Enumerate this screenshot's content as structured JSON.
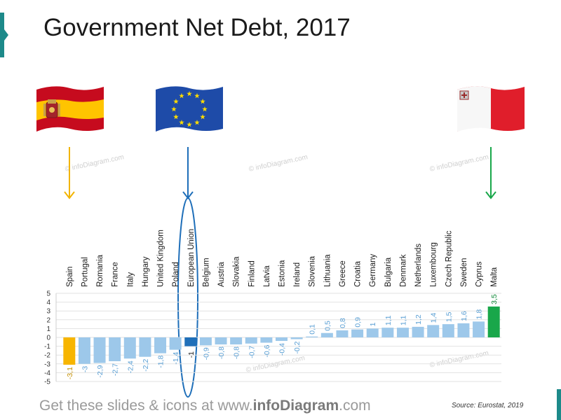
{
  "title": "Government Net Debt, 2017",
  "footer": {
    "pre": "Get these slides & icons at www.",
    "brand": "infoDiagram",
    "post": ".com"
  },
  "source": "Source: Eurostat, 2019",
  "watermark": "© infoDiagram.com",
  "flags": {
    "spain": "spain-flag-icon",
    "eu": "eu-flag-icon",
    "malta": "malta-flag-icon"
  },
  "colors": {
    "bar": "#9dc8ea",
    "label": "#5a9fd4",
    "spain": "#f7b500",
    "spain_label": "#c48f00",
    "eu": "#1f6fb9",
    "malta": "#19a74a",
    "malta_label": "#128a3a"
  },
  "chart_data": {
    "type": "bar",
    "categories": [
      "Spain",
      "Portugal",
      "Romania",
      "France",
      "Italy",
      "Hungary",
      "United Kingdom",
      "Poland",
      "European Union",
      "Belgium",
      "Austria",
      "Slovakia",
      "Finland",
      "Latvia",
      "Estonia",
      "Ireland",
      "Slovenia",
      "Lithuania",
      "Greece",
      "Croatia",
      "Germany",
      "Bulgaria",
      "Denmark",
      "Netherlands",
      "Luxembourg",
      "Czech Republic",
      "Sweden",
      "Cyprus",
      "Malta"
    ],
    "values": [
      -3.1,
      -3,
      -2.9,
      -2.7,
      -2.4,
      -2.2,
      -1.8,
      -1.4,
      -1,
      -0.9,
      -0.8,
      -0.8,
      -0.7,
      -0.6,
      -0.4,
      -0.2,
      0.1,
      0.5,
      0.8,
      0.9,
      1,
      1.1,
      1.1,
      1.2,
      1.4,
      1.5,
      1.6,
      1.8,
      3.5
    ],
    "data_labels": [
      "-3,1",
      "-3",
      "-2,9",
      "-2,7",
      "-2,4",
      "-2,2",
      "-1,8",
      "-1,4",
      "-1",
      "-0,9",
      "-0,8",
      "-0,8",
      "-0,7",
      "-0,6",
      "-0,4",
      "-0,2",
      "0,1",
      "0,5",
      "0,8",
      "0,9",
      "1",
      "1,1",
      "1,1",
      "1,2",
      "1,4",
      "1,5",
      "1,6",
      "1,8",
      "3,5"
    ],
    "ylim": [
      -5,
      5
    ],
    "yticks": [
      5,
      4,
      3,
      2,
      1,
      0,
      -1,
      -2,
      -3,
      -4,
      -5
    ],
    "ytick_labels": [
      "5",
      "4",
      "3",
      "2",
      "1",
      "0",
      "-1",
      "-2",
      "-3",
      "-4",
      "-5"
    ],
    "highlight": {
      "Spain": "#f7b500",
      "European Union": "#1f6fb9",
      "Malta": "#19a74a"
    },
    "grid": true
  }
}
